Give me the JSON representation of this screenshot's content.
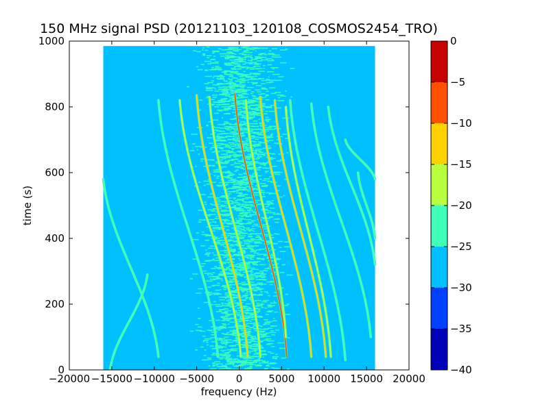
{
  "chart_data": {
    "type": "heatmap",
    "title": "150 MHz signal PSD (20121103_120108_COSMOS2454_TRO)",
    "xlabel": "frequency (Hz)",
    "ylabel": "time (s)",
    "xlim": [
      -20000,
      20000
    ],
    "ylim": [
      0,
      1000
    ],
    "x_ticks": [
      -20000,
      -15000,
      -10000,
      -5000,
      0,
      5000,
      10000,
      15000,
      20000
    ],
    "y_ticks": [
      0,
      200,
      400,
      600,
      800,
      1000
    ],
    "x_tick_labels": [
      "−20000",
      "−15000",
      "−10000",
      "−5000",
      "0",
      "5000",
      "10000",
      "15000",
      "20000"
    ],
    "y_tick_labels": [
      "0",
      "200",
      "400",
      "600",
      "800",
      "1000"
    ],
    "data_extent": {
      "x": [
        -16000,
        16000
      ],
      "y": [
        0,
        985
      ]
    },
    "background_level": -27.5,
    "noise_band": {
      "center_hz": 0,
      "half_width_hz": 4200,
      "level": -22.5
    },
    "colorbar": {
      "min": -40,
      "max": 0,
      "ticks": [
        0,
        -5,
        -10,
        -15,
        -20,
        -25,
        -30,
        -35,
        -40
      ],
      "tick_labels": [
        "0",
        "−5",
        "−10",
        "−15",
        "−20",
        "−25",
        "−30",
        "−35",
        "−40"
      ],
      "levels": [
        {
          "from": -40,
          "to": -35,
          "color": "#0000b8"
        },
        {
          "from": -35,
          "to": -30,
          "color": "#0040ff"
        },
        {
          "from": -30,
          "to": -25,
          "color": "#00c0ff"
        },
        {
          "from": -25,
          "to": -20,
          "color": "#40ffb8"
        },
        {
          "from": -20,
          "to": -15,
          "color": "#b8ff40"
        },
        {
          "from": -15,
          "to": -10,
          "color": "#ffd000"
        },
        {
          "from": -10,
          "to": -5,
          "color": "#ff5000"
        },
        {
          "from": -5,
          "to": 0,
          "color": "#c80000"
        }
      ]
    },
    "traces": [
      {
        "f0": -15200,
        "t0": 0,
        "f1": -10800,
        "t1": 290,
        "level": -22.5
      },
      {
        "f0": -16000,
        "t0": 580,
        "f1": -9500,
        "t1": 40,
        "level": -22.5
      },
      {
        "f0": -9500,
        "t0": 820,
        "f1": -2500,
        "t1": 40,
        "level": -22.5
      },
      {
        "f0": -7000,
        "t0": 820,
        "f1": 200,
        "t1": 40,
        "level": -17.5
      },
      {
        "f0": -5000,
        "t0": 835,
        "f1": 1000,
        "t1": 40,
        "level": -12.5
      },
      {
        "f0": -3500,
        "t0": 830,
        "f1": 2500,
        "t1": 40,
        "level": -17.5
      },
      {
        "f0": -500,
        "t0": 840,
        "f1": 5600,
        "t1": 40,
        "level": -7.5
      },
      {
        "f0": 800,
        "t0": 820,
        "f1": 5500,
        "t1": 100,
        "level": -17.5
      },
      {
        "f0": 2500,
        "t0": 830,
        "f1": 8500,
        "t1": 40,
        "level": -12.5
      },
      {
        "f0": 4200,
        "t0": 820,
        "f1": 10200,
        "t1": 40,
        "level": -12.5
      },
      {
        "f0": 5500,
        "t0": 800,
        "f1": 10800,
        "t1": 40,
        "level": -17.5
      },
      {
        "f0": 6000,
        "t0": 820,
        "f1": 12500,
        "t1": 30,
        "level": -22.5
      },
      {
        "f0": 8500,
        "t0": 810,
        "f1": 15500,
        "t1": 100,
        "level": -22.5
      },
      {
        "f0": 10500,
        "t0": 800,
        "f1": 16000,
        "t1": 320,
        "level": -22.5
      },
      {
        "f0": 12500,
        "t0": 700,
        "f1": 16000,
        "t1": 580,
        "level": -22.5
      },
      {
        "f0": 14000,
        "t0": 600,
        "f1": 16000,
        "t1": 400,
        "level": -22.5
      }
    ]
  }
}
